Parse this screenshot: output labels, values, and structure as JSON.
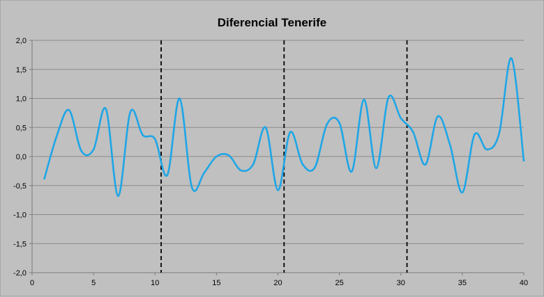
{
  "chart_data": {
    "type": "line",
    "title": "Diferencial Tenerife",
    "xlabel": "",
    "ylabel": "",
    "xlim": [
      0,
      40
    ],
    "ylim": [
      -2.0,
      2.0
    ],
    "x_ticks": [
      0,
      5,
      10,
      15,
      20,
      25,
      30,
      35,
      40
    ],
    "x_tick_labels": [
      "0",
      "5",
      "10",
      "15",
      "20",
      "25",
      "30",
      "35",
      "40"
    ],
    "y_ticks": [
      2.0,
      1.5,
      1.0,
      0.5,
      0.0,
      -0.5,
      -1.0,
      -1.5,
      -2.0
    ],
    "y_tick_labels": [
      "2,0",
      "1,5",
      "1,0",
      "0,5",
      "0,0",
      "-0,5",
      "-1,0",
      "-1,5",
      "-2,0"
    ],
    "grid": "horizontal",
    "legend": "none",
    "series": [
      {
        "color": "#1ea6e6",
        "smooth": true,
        "x": [
          1,
          2,
          3,
          4,
          5,
          6,
          7,
          8,
          9,
          10,
          11,
          12,
          13,
          14,
          15,
          16,
          17,
          18,
          19,
          20,
          21,
          22,
          23,
          24,
          25,
          26,
          27,
          28,
          29,
          30,
          31,
          32,
          33,
          34,
          35,
          36,
          37,
          38,
          39,
          40
        ],
        "y": [
          -0.38,
          0.35,
          0.8,
          0.1,
          0.12,
          0.82,
          -0.68,
          0.77,
          0.37,
          0.3,
          -0.32,
          1.0,
          -0.53,
          -0.28,
          0.0,
          0.02,
          -0.24,
          -0.13,
          0.5,
          -0.58,
          0.42,
          -0.13,
          -0.19,
          0.56,
          0.58,
          -0.26,
          0.98,
          -0.2,
          1.02,
          0.66,
          0.42,
          -0.14,
          0.69,
          0.2,
          -0.62,
          0.38,
          0.12,
          0.4,
          1.69,
          -0.07
        ]
      }
    ],
    "vertical_markers": [
      {
        "x": 10.5,
        "style": "dashed",
        "color": "#000000"
      },
      {
        "x": 20.5,
        "style": "dashed",
        "color": "#000000"
      },
      {
        "x": 30.5,
        "style": "dashed",
        "color": "#000000"
      }
    ]
  }
}
